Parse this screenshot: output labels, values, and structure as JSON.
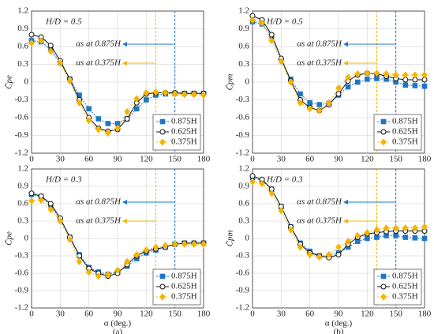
{
  "chart_data": [
    {
      "type": "line",
      "title": "H/D = 0.5",
      "y_label": "C̄pe",
      "x": [
        0,
        10,
        20,
        30,
        40,
        50,
        60,
        70,
        80,
        90,
        100,
        110,
        120,
        130,
        140,
        150,
        160,
        170,
        180
      ],
      "xlim": [
        0,
        180
      ],
      "xticks": [
        0,
        30,
        60,
        90,
        120,
        150,
        180
      ],
      "ylim": [
        -1.2,
        1.2
      ],
      "yticks": [
        -1.2,
        -0.9,
        -0.6,
        -0.3,
        0,
        0.3,
        0.6,
        0.9,
        1.2
      ],
      "grid": true,
      "legend": "lower right",
      "vlines": [
        {
          "x": 150,
          "color": "#1f77c4"
        },
        {
          "x": 130,
          "color": "#f5b400"
        }
      ],
      "annotations": [
        {
          "text": "αs at 0.875H",
          "x": 150
        },
        {
          "text": "αs at 0.375H",
          "x": 130
        }
      ],
      "series": [
        {
          "name": "0.875H",
          "color": "#1f77c4",
          "marker": "square",
          "values": [
            0.7,
            0.68,
            0.55,
            0.33,
            0.05,
            -0.22,
            -0.45,
            -0.62,
            -0.7,
            -0.7,
            -0.62,
            -0.45,
            -0.3,
            -0.22,
            -0.2,
            -0.19,
            -0.19,
            -0.19,
            -0.19
          ]
        },
        {
          "name": "0.625H",
          "color": "#111111",
          "marker": "circle",
          "values": [
            0.8,
            0.76,
            0.62,
            0.36,
            0.05,
            -0.3,
            -0.6,
            -0.78,
            -0.83,
            -0.8,
            -0.62,
            -0.35,
            -0.2,
            -0.18,
            -0.18,
            -0.18,
            -0.19,
            -0.19,
            -0.19
          ]
        },
        {
          "name": "0.375H",
          "color": "#f5b400",
          "marker": "diamond",
          "values": [
            0.66,
            0.7,
            0.52,
            0.32,
            0.02,
            -0.35,
            -0.65,
            -0.8,
            -0.86,
            -0.78,
            -0.5,
            -0.28,
            -0.18,
            -0.17,
            -0.18,
            -0.2,
            -0.21,
            -0.21,
            -0.22
          ]
        }
      ]
    },
    {
      "type": "line",
      "title": "H/D = 0.5",
      "y_label": "C̄pm",
      "x": [
        0,
        10,
        20,
        30,
        40,
        50,
        60,
        70,
        80,
        90,
        100,
        110,
        120,
        130,
        140,
        150,
        160,
        170,
        180
      ],
      "xlim": [
        0,
        180
      ],
      "xticks": [
        0,
        30,
        60,
        90,
        120,
        150,
        180
      ],
      "ylim": [
        -1.2,
        1.2
      ],
      "yticks": [
        -1.2,
        -0.9,
        -0.6,
        -0.3,
        0,
        0.3,
        0.6,
        0.9,
        1.2
      ],
      "grid": true,
      "legend": "lower right",
      "vlines": [
        {
          "x": 150,
          "color": "#1f77c4"
        },
        {
          "x": 130,
          "color": "#f5b400"
        }
      ],
      "annotations": [
        {
          "text": "αs at 0.875H",
          "x": 150
        },
        {
          "text": "αs at 0.375H",
          "x": 130
        }
      ],
      "series": [
        {
          "name": "0.875H",
          "color": "#1f77c4",
          "marker": "square",
          "values": [
            1.02,
            0.98,
            0.78,
            0.38,
            0.05,
            -0.2,
            -0.35,
            -0.38,
            -0.36,
            -0.22,
            -0.08,
            0.0,
            0.05,
            0.06,
            0.05,
            0.0,
            -0.05,
            -0.06,
            -0.07
          ]
        },
        {
          "name": "0.625H",
          "color": "#111111",
          "marker": "circle",
          "values": [
            1.12,
            1.05,
            0.8,
            0.4,
            0.02,
            -0.3,
            -0.43,
            -0.48,
            -0.38,
            -0.2,
            0.02,
            0.12,
            0.15,
            0.14,
            0.1,
            0.06,
            0.04,
            0.04,
            0.04
          ]
        },
        {
          "name": "0.375H",
          "color": "#f5b400",
          "marker": "diamond",
          "values": [
            1.05,
            1.0,
            0.7,
            0.35,
            0.0,
            -0.35,
            -0.45,
            -0.48,
            -0.35,
            -0.1,
            0.08,
            0.14,
            0.15,
            0.15,
            0.14,
            0.12,
            0.12,
            0.12,
            0.12
          ]
        }
      ]
    },
    {
      "type": "line",
      "title": "H/D = 0.3",
      "y_label": "C̄pe",
      "x_label": "α (deg.)",
      "caption": "(a)",
      "x": [
        0,
        10,
        20,
        30,
        40,
        50,
        60,
        70,
        80,
        90,
        100,
        110,
        120,
        130,
        140,
        150,
        160,
        170,
        180
      ],
      "xlim": [
        0,
        180
      ],
      "xticks": [
        0,
        30,
        60,
        90,
        120,
        150,
        180
      ],
      "ylim": [
        -1.2,
        1.2
      ],
      "yticks": [
        -1.2,
        -0.9,
        -0.6,
        -0.3,
        0,
        0.3,
        0.6,
        0.9,
        1.2
      ],
      "grid": true,
      "legend": "lower right",
      "vlines": [
        {
          "x": 150,
          "color": "#1f77c4"
        },
        {
          "x": 130,
          "color": "#f5b400"
        }
      ],
      "annotations": [
        {
          "text": "αs at 0.875H",
          "x": 150
        },
        {
          "text": "αs at 0.375H",
          "x": 130
        }
      ],
      "series": [
        {
          "name": "0.875H",
          "color": "#1f77c4",
          "marker": "square",
          "values": [
            0.76,
            0.72,
            0.57,
            0.33,
            0.02,
            -0.28,
            -0.5,
            -0.58,
            -0.62,
            -0.58,
            -0.48,
            -0.35,
            -0.25,
            -0.2,
            -0.15,
            -0.1,
            -0.08,
            -0.08,
            -0.08
          ]
        },
        {
          "name": "0.625H",
          "color": "#111111",
          "marker": "circle",
          "values": [
            0.78,
            0.73,
            0.6,
            0.35,
            0.02,
            -0.3,
            -0.52,
            -0.6,
            -0.65,
            -0.6,
            -0.45,
            -0.3,
            -0.22,
            -0.18,
            -0.15,
            -0.1,
            -0.08,
            -0.08,
            -0.08
          ]
        },
        {
          "name": "0.375H",
          "color": "#f5b400",
          "marker": "diamond",
          "values": [
            0.65,
            0.66,
            0.5,
            0.3,
            -0.02,
            -0.4,
            -0.58,
            -0.65,
            -0.62,
            -0.55,
            -0.4,
            -0.28,
            -0.2,
            -0.15,
            -0.12,
            -0.1,
            -0.1,
            -0.1,
            -0.1
          ]
        }
      ]
    },
    {
      "type": "line",
      "title": "H/D = 0.3",
      "y_label": "C̄pm",
      "x_label": "α (deg.)",
      "caption": "(b)",
      "x": [
        0,
        10,
        20,
        30,
        40,
        50,
        60,
        70,
        80,
        90,
        100,
        110,
        120,
        130,
        140,
        150,
        160,
        170,
        180
      ],
      "xlim": [
        0,
        180
      ],
      "xticks": [
        0,
        30,
        60,
        90,
        120,
        150,
        180
      ],
      "ylim": [
        -1.2,
        1.2
      ],
      "yticks": [
        -1.2,
        -0.9,
        -0.6,
        -0.3,
        0,
        0.3,
        0.6,
        0.9,
        1.2
      ],
      "grid": true,
      "legend": "lower right",
      "vlines": [
        {
          "x": 150,
          "color": "#1f77c4"
        },
        {
          "x": 130,
          "color": "#f5b400"
        }
      ],
      "annotations": [
        {
          "text": "αs at 0.875H",
          "x": 150
        },
        {
          "text": "αs at 0.375H",
          "x": 130
        }
      ],
      "series": [
        {
          "name": "0.875H",
          "color": "#1f77c4",
          "marker": "square",
          "values": [
            1.05,
            1.0,
            0.85,
            0.55,
            0.2,
            -0.08,
            -0.22,
            -0.3,
            -0.3,
            -0.25,
            -0.15,
            -0.05,
            0.0,
            0.02,
            0.05,
            0.05,
            0.02,
            0.01,
            0.0
          ]
        },
        {
          "name": "0.625H",
          "color": "#111111",
          "marker": "circle",
          "values": [
            1.08,
            1.02,
            0.85,
            0.55,
            0.2,
            -0.1,
            -0.25,
            -0.3,
            -0.33,
            -0.28,
            -0.1,
            0.02,
            0.08,
            0.1,
            0.12,
            0.13,
            0.13,
            0.13,
            0.13
          ]
        },
        {
          "name": "0.375H",
          "color": "#f5b400",
          "marker": "diamond",
          "values": [
            0.98,
            0.95,
            0.78,
            0.48,
            0.15,
            -0.15,
            -0.28,
            -0.32,
            -0.28,
            -0.15,
            -0.05,
            0.05,
            0.1,
            0.15,
            0.18,
            0.18,
            0.18,
            0.18,
            0.2
          ]
        }
      ]
    }
  ]
}
